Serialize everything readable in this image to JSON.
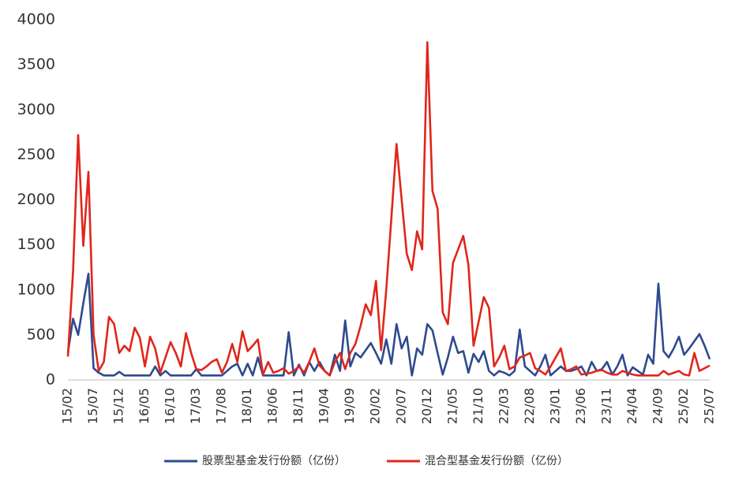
{
  "chart_data": {
    "type": "line",
    "categories": [
      "15/02",
      null,
      null,
      null,
      null,
      "15/07",
      null,
      null,
      null,
      null,
      "15/12",
      null,
      null,
      null,
      null,
      "16/05",
      null,
      null,
      null,
      null,
      "16/10",
      null,
      null,
      null,
      null,
      "17/03",
      null,
      null,
      null,
      null,
      "17/08",
      null,
      null,
      null,
      null,
      "18/01",
      null,
      null,
      null,
      null,
      "18/06",
      null,
      null,
      null,
      null,
      "18/11",
      null,
      null,
      null,
      null,
      "19/04",
      null,
      null,
      null,
      null,
      "19/09",
      null,
      null,
      null,
      null,
      "20/02",
      null,
      null,
      null,
      null,
      "20/07",
      null,
      null,
      null,
      null,
      "20/12",
      null,
      null,
      null,
      null,
      "21/05",
      null,
      null,
      null,
      null,
      "21/10",
      null,
      null,
      null,
      null,
      "22/03",
      null,
      null,
      null,
      null,
      "22/08",
      null,
      null,
      null,
      null,
      "23/01",
      null,
      null,
      null,
      null,
      "23/06",
      null,
      null,
      null,
      null,
      "23/11",
      null,
      null,
      null,
      null,
      "24/04",
      null,
      null,
      null,
      null,
      "24/09",
      null,
      null,
      null,
      null,
      "25/02",
      null,
      null,
      null,
      null,
      "25/07"
    ],
    "series": [
      {
        "name": "股票型基金发行份额（亿份）",
        "color": "#2e4a8f",
        "values": [
          300,
          680,
          500,
          850,
          1180,
          130,
          80,
          50,
          50,
          50,
          90,
          50,
          50,
          50,
          50,
          50,
          50,
          150,
          50,
          100,
          50,
          50,
          50,
          50,
          50,
          120,
          50,
          50,
          50,
          50,
          50,
          100,
          150,
          180,
          50,
          180,
          50,
          250,
          50,
          50,
          50,
          50,
          50,
          530,
          50,
          170,
          50,
          200,
          100,
          200,
          100,
          50,
          280,
          100,
          660,
          150,
          300,
          250,
          330,
          410,
          300,
          180,
          450,
          180,
          620,
          350,
          480,
          50,
          350,
          280,
          620,
          550,
          300,
          60,
          250,
          480,
          300,
          320,
          80,
          290,
          200,
          320,
          100,
          50,
          100,
          80,
          50,
          100,
          560,
          150,
          100,
          50,
          150,
          280,
          50,
          100,
          150,
          100,
          100,
          120,
          150,
          50,
          200,
          100,
          120,
          200,
          60,
          150,
          280,
          50,
          140,
          100,
          60,
          280,
          180,
          1070,
          320,
          250,
          350,
          480,
          280,
          350,
          430,
          510,
          380,
          230
        ]
      },
      {
        "name": "混合型基金发行份额（亿份）",
        "color": "#e0261b",
        "values": [
          260,
          1200,
          2720,
          1490,
          2310,
          500,
          100,
          200,
          700,
          620,
          300,
          380,
          320,
          580,
          470,
          150,
          480,
          350,
          80,
          250,
          420,
          300,
          150,
          520,
          300,
          120,
          110,
          150,
          200,
          230,
          80,
          200,
          400,
          200,
          540,
          320,
          380,
          450,
          60,
          200,
          80,
          100,
          130,
          70,
          100,
          150,
          80,
          200,
          350,
          160,
          100,
          50,
          200,
          300,
          120,
          300,
          400,
          600,
          840,
          720,
          1100,
          330,
          1000,
          1800,
          2620,
          2000,
          1400,
          1220,
          1650,
          1450,
          3750,
          2100,
          1900,
          750,
          620,
          1300,
          1450,
          1600,
          1280,
          380,
          650,
          920,
          800,
          150,
          250,
          380,
          120,
          150,
          250,
          270,
          300,
          130,
          100,
          60,
          150,
          250,
          350,
          100,
          120,
          150,
          60,
          70,
          80,
          100,
          110,
          80,
          60,
          60,
          100,
          80,
          60,
          50,
          50,
          50,
          50,
          50,
          100,
          60,
          80,
          100,
          60,
          50,
          300,
          100,
          130,
          160
        ]
      }
    ],
    "ylim": [
      0,
      4000
    ],
    "yticks": [
      0,
      500,
      1000,
      1500,
      2000,
      2500,
      3000,
      3500,
      4000
    ],
    "grid": false,
    "legend": "bottom"
  }
}
